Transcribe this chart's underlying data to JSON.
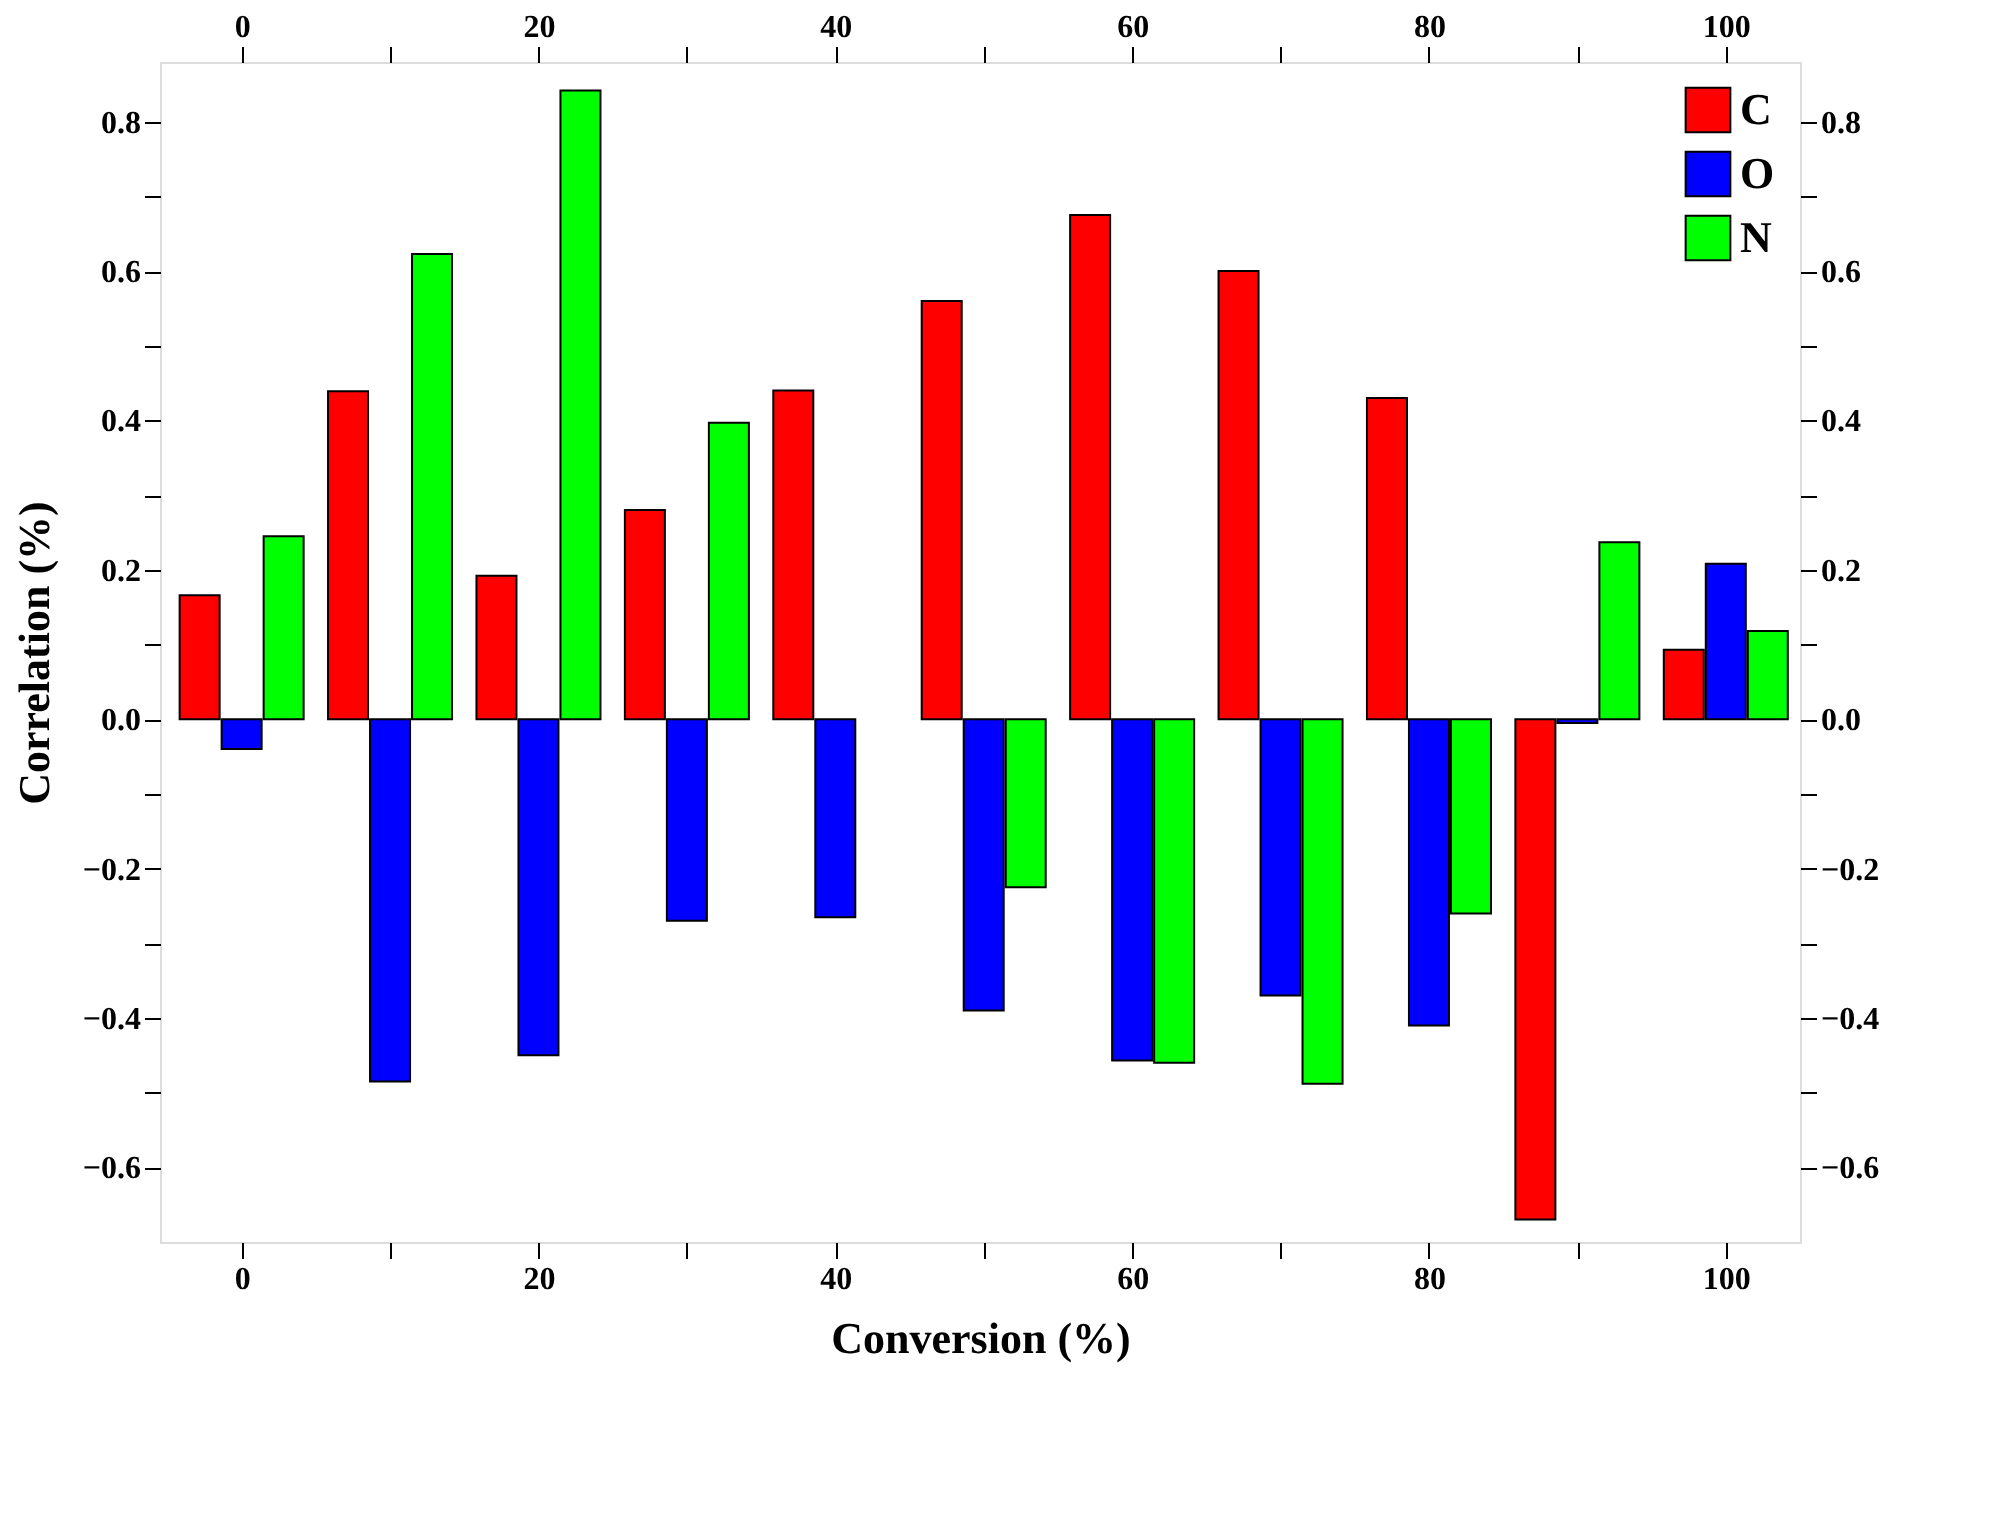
{
  "chart_data": {
    "type": "bar",
    "xlabel": "Conversion (%)",
    "ylabel": "Correlation (%)",
    "x": [
      0,
      10,
      20,
      30,
      40,
      50,
      60,
      70,
      80,
      90,
      100
    ],
    "series": [
      {
        "name": "C",
        "color": "#ff0000",
        "values": [
          0.166,
          0.439,
          0.192,
          0.28,
          0.44,
          0.56,
          0.675,
          0.6,
          0.43,
          -0.67,
          0.093
        ]
      },
      {
        "name": "O",
        "color": "#0000ff",
        "values": [
          -0.04,
          -0.485,
          -0.45,
          -0.27,
          -0.265,
          -0.39,
          -0.457,
          -0.37,
          -0.41,
          -0.005,
          0.208
        ]
      },
      {
        "name": "N",
        "color": "#00ff00",
        "values": [
          0.245,
          0.623,
          0.842,
          0.397,
          null,
          -0.225,
          -0.46,
          -0.488,
          -0.26,
          0.237,
          0.118
        ]
      }
    ],
    "xlim": [
      -5.5,
      105
    ],
    "xticks": [
      0,
      {
        "value": 10,
        "label": null
      },
      20,
      {
        "value": 30,
        "label": null
      },
      40,
      {
        "value": 50,
        "label": null
      },
      60,
      {
        "value": 70,
        "label": null
      },
      80,
      {
        "value": 90,
        "label": null
      },
      100
    ],
    "x2lim": [
      -5.5,
      105
    ],
    "x2ticks": [
      0,
      {
        "value": 10,
        "label": null
      },
      20,
      {
        "value": 30,
        "label": null
      },
      40,
      {
        "value": 50,
        "label": null
      },
      60,
      {
        "value": 70,
        "label": null
      },
      80,
      {
        "value": 90,
        "label": null
      },
      100
    ],
    "ylim": [
      -0.7,
      0.88
    ],
    "yticks": [
      -0.6,
      {
        "value": -0.5,
        "label": null
      },
      -0.4,
      {
        "value": -0.3,
        "label": null
      },
      -0.2,
      {
        "value": -0.1,
        "label": null
      },
      {
        "value": 0,
        "label": "0.0"
      },
      {
        "value": 0.1,
        "label": null
      },
      0.2,
      {
        "value": 0.3,
        "label": null
      },
      0.4,
      {
        "value": 0.5,
        "label": null
      },
      0.6,
      {
        "value": 0.7,
        "label": null
      },
      0.8
    ],
    "y2lim": [
      -0.7,
      0.88
    ],
    "y2ticks": [
      -0.6,
      {
        "value": -0.5,
        "label": null
      },
      -0.4,
      {
        "value": -0.3,
        "label": null
      },
      -0.2,
      {
        "value": -0.1,
        "label": null
      },
      {
        "value": 0,
        "label": "0.0"
      },
      {
        "value": 0.1,
        "label": null
      },
      0.2,
      {
        "value": 0.3,
        "label": null
      },
      0.4,
      {
        "value": 0.5,
        "label": null
      },
      0.6,
      {
        "value": 0.7,
        "label": null
      },
      0.8
    ],
    "grid": false,
    "legend": "top right"
  }
}
